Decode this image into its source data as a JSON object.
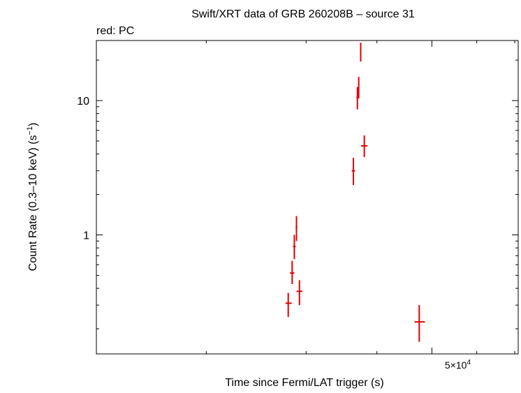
{
  "chart_data": {
    "type": "scatter",
    "title": "Swift/XRT data of GRB 260208B – source 31",
    "subtitle": "red: PC",
    "xlabel": "Time since Fermi/LAT trigger (s)",
    "ylabel": "Count Rate (0.3–10 keV) (s",
    "ylabel_sup": "−1",
    "ylabel_close": ")",
    "x_scale": "log",
    "y_scale": "log",
    "xlim": [
      12800,
      71000
    ],
    "ylim": [
      0.13,
      28
    ],
    "x_tick_labels": [
      {
        "value": 50000,
        "mantissa": "5×10",
        "exponent": "4"
      }
    ],
    "y_tick_labels": [
      {
        "value": 1,
        "label": "1"
      },
      {
        "value": 10,
        "label": "10"
      }
    ],
    "series": [
      {
        "color": "#e00000",
        "points": [
          {
            "x": 27900,
            "y": 0.31,
            "x_lo": 27600,
            "x_hi": 28300,
            "y_lo": 0.245,
            "y_hi": 0.37
          },
          {
            "x": 28350,
            "y": 0.52,
            "x_lo": 28100,
            "x_hi": 28600,
            "y_lo": 0.43,
            "y_hi": 0.64
          },
          {
            "x": 28600,
            "y": 0.82,
            "x_lo": 28450,
            "x_hi": 28750,
            "y_lo": 0.66,
            "y_hi": 1.0
          },
          {
            "x": 28850,
            "y": 1.14,
            "x_lo": 28750,
            "x_hi": 28950,
            "y_lo": 0.9,
            "y_hi": 1.38
          },
          {
            "x": 29200,
            "y": 0.38,
            "x_lo": 28850,
            "x_hi": 29550,
            "y_lo": 0.3,
            "y_hi": 0.46
          },
          {
            "x": 36350,
            "y": 3.0,
            "x_lo": 36100,
            "x_hi": 36600,
            "y_lo": 2.35,
            "y_hi": 3.75
          },
          {
            "x": 36950,
            "y": 10.5,
            "x_lo": 36800,
            "x_hi": 37100,
            "y_lo": 8.6,
            "y_hi": 12.6
          },
          {
            "x": 37150,
            "y": 12.5,
            "x_lo": 37050,
            "x_hi": 37250,
            "y_lo": 10.4,
            "y_hi": 15.0
          },
          {
            "x": 37450,
            "y": 23.0,
            "x_lo": 37350,
            "x_hi": 37550,
            "y_lo": 19.5,
            "y_hi": 27.0
          },
          {
            "x": 38000,
            "y": 4.6,
            "x_lo": 37500,
            "x_hi": 38500,
            "y_lo": 3.8,
            "y_hi": 5.5
          },
          {
            "x": 47500,
            "y": 0.225,
            "x_lo": 46600,
            "x_hi": 48600,
            "y_lo": 0.16,
            "y_hi": 0.3
          }
        ]
      }
    ]
  }
}
